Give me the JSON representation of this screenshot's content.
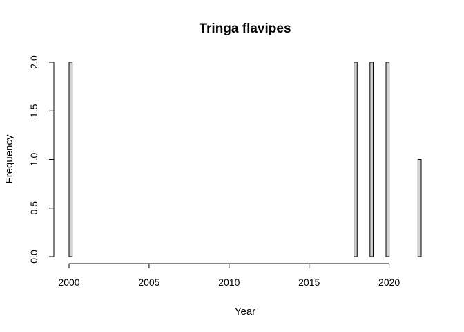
{
  "chart_data": {
    "type": "bar",
    "title": "Tringa flavipes",
    "xlabel": "Year",
    "ylabel": "Frequency",
    "bin_width": 0.2,
    "x": [
      2000,
      2000.2,
      2000.4,
      2000.6,
      2000.8,
      2001,
      2001.2,
      2001.4,
      2001.6,
      2001.8,
      2002,
      2002.2,
      2002.4,
      2002.6,
      2002.8,
      2003,
      2003.2,
      2003.4,
      2003.6,
      2003.8,
      2004,
      2004.2,
      2004.4,
      2004.6,
      2004.8,
      2005,
      2005.2,
      2005.4,
      2005.6,
      2005.8,
      2006,
      2006.2,
      2006.4,
      2006.6,
      2006.8,
      2007,
      2007.2,
      2007.4,
      2007.6,
      2007.8,
      2008,
      2008.2,
      2008.4,
      2008.6,
      2008.8,
      2009,
      2009.2,
      2009.4,
      2009.6,
      2009.8,
      2010,
      2010.2,
      2010.4,
      2010.6,
      2010.8,
      2011,
      2011.2,
      2011.4,
      2011.6,
      2011.8,
      2012,
      2012.2,
      2012.4,
      2012.6,
      2012.8,
      2013,
      2013.2,
      2013.4,
      2013.6,
      2013.8,
      2014,
      2014.2,
      2014.4,
      2014.6,
      2014.8,
      2015,
      2015.2,
      2015.4,
      2015.6,
      2015.8,
      2016,
      2016.2,
      2016.4,
      2016.6,
      2016.8,
      2017,
      2017.2,
      2017.4,
      2017.6,
      2017.8,
      2018,
      2018.2,
      2018.4,
      2018.6,
      2018.8,
      2019,
      2019.2,
      2019.4,
      2019.6,
      2019.8,
      2020,
      2020.2,
      2020.4,
      2020.6,
      2020.8,
      2021,
      2021.2,
      2021.4,
      2021.6,
      2021.8
    ],
    "values": [
      2,
      0,
      0,
      0,
      0,
      0,
      0,
      0,
      0,
      0,
      0,
      0,
      0,
      0,
      0,
      0,
      0,
      0,
      0,
      0,
      0,
      0,
      0,
      0,
      0,
      0,
      0,
      0,
      0,
      0,
      0,
      0,
      0,
      0,
      0,
      0,
      0,
      0,
      0,
      0,
      0,
      0,
      0,
      0,
      0,
      0,
      0,
      0,
      0,
      0,
      0,
      0,
      0,
      0,
      0,
      0,
      0,
      0,
      0,
      0,
      0,
      0,
      0,
      0,
      0,
      0,
      0,
      0,
      0,
      0,
      0,
      0,
      0,
      0,
      0,
      0,
      0,
      0,
      0,
      0,
      0,
      0,
      0,
      0,
      0,
      0,
      0,
      0,
      0,
      2,
      0,
      0,
      0,
      0,
      2,
      0,
      0,
      0,
      0,
      2,
      0,
      0,
      0,
      0,
      0,
      0,
      0,
      0,
      0,
      1
    ],
    "xlim": [
      2000,
      2022
    ],
    "ylim": [
      0,
      2
    ],
    "xticks": [
      "2000",
      "2005",
      "2010",
      "2015",
      "2020"
    ],
    "yticks": [
      "0.0",
      "0.5",
      "1.0",
      "1.5",
      "2.0"
    ],
    "grid": false,
    "bar_color": "#d3d3d3",
    "edge_color": "#000000"
  }
}
